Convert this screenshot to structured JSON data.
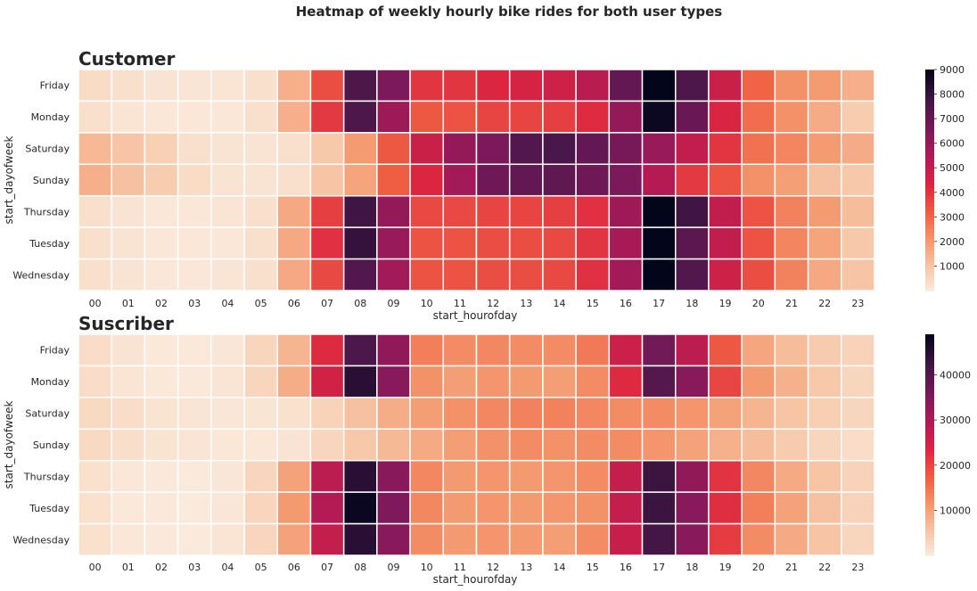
{
  "figure": {
    "title": "Heatmap of weekly hourly bike rides for both user types"
  },
  "chart_data": [
    {
      "type": "heatmap",
      "title": "Customer",
      "xlabel": "start_hourofday",
      "ylabel": "start_dayofweek",
      "x": [
        "00",
        "01",
        "02",
        "03",
        "04",
        "05",
        "06",
        "07",
        "08",
        "09",
        "10",
        "11",
        "12",
        "13",
        "14",
        "15",
        "16",
        "17",
        "18",
        "19",
        "20",
        "21",
        "22",
        "23"
      ],
      "y": [
        "Friday",
        "Monday",
        "Saturday",
        "Sunday",
        "Thursday",
        "Tuesday",
        "Wednesday"
      ],
      "values": [
        [
          400,
          300,
          200,
          150,
          150,
          300,
          1500,
          3500,
          7500,
          6500,
          4000,
          4000,
          4300,
          4500,
          4700,
          5200,
          7000,
          9300,
          7500,
          4800,
          3100,
          2200,
          2000,
          1500
        ],
        [
          300,
          150,
          100,
          100,
          100,
          300,
          1500,
          3900,
          7500,
          5800,
          3300,
          3400,
          3700,
          3700,
          3800,
          4200,
          6000,
          8800,
          6900,
          4400,
          2900,
          2200,
          1600,
          800
        ],
        [
          1300,
          1000,
          700,
          300,
          200,
          200,
          300,
          900,
          2000,
          3300,
          4800,
          6000,
          6500,
          7400,
          7600,
          7000,
          6600,
          5900,
          5000,
          4000,
          2800,
          2400,
          2000,
          1600
        ],
        [
          1500,
          1100,
          800,
          400,
          200,
          200,
          300,
          1000,
          1800,
          3200,
          4300,
          5700,
          6800,
          7000,
          7100,
          6800,
          6500,
          5300,
          3900,
          3400,
          2200,
          1900,
          1100,
          900
        ],
        [
          300,
          200,
          100,
          100,
          150,
          300,
          1700,
          3800,
          7800,
          6000,
          3600,
          3600,
          3700,
          3700,
          3800,
          4100,
          5800,
          9600,
          7800,
          5000,
          3400,
          2500,
          2000,
          1200
        ],
        [
          300,
          200,
          100,
          100,
          100,
          300,
          1700,
          4100,
          8000,
          5900,
          3400,
          3400,
          3500,
          3500,
          3600,
          4000,
          5600,
          9800,
          7200,
          5000,
          3400,
          2400,
          1800,
          900
        ],
        [
          300,
          200,
          100,
          100,
          150,
          300,
          1700,
          3600,
          7400,
          5700,
          3400,
          3400,
          3500,
          3500,
          3600,
          4100,
          5700,
          9000,
          7400,
          4700,
          3500,
          2500,
          1700,
          1000
        ]
      ],
      "colorbar": {
        "min": 0,
        "max": 9000,
        "ticks": [
          1000,
          2000,
          3000,
          4000,
          5000,
          6000,
          7000,
          8000,
          9000
        ]
      }
    },
    {
      "type": "heatmap",
      "title": "Suscriber",
      "xlabel": "start_hourofday",
      "ylabel": "start_dayofweek",
      "x": [
        "00",
        "01",
        "02",
        "03",
        "04",
        "05",
        "06",
        "07",
        "08",
        "09",
        "10",
        "11",
        "12",
        "13",
        "14",
        "15",
        "16",
        "17",
        "18",
        "19",
        "20",
        "21",
        "22",
        "23"
      ],
      "y": [
        "Friday",
        "Monday",
        "Saturday",
        "Sunday",
        "Thursday",
        "Tuesday",
        "Wednesday"
      ],
      "values": [
        [
          2000,
          1000,
          500,
          400,
          700,
          3000,
          7500,
          23000,
          41000,
          33000,
          14000,
          12500,
          13000,
          12500,
          12500,
          14500,
          26000,
          36500,
          28000,
          18000,
          9500,
          6500,
          4500,
          3500
        ],
        [
          2000,
          800,
          500,
          300,
          800,
          3000,
          8500,
          25000,
          45000,
          34000,
          12000,
          10500,
          11500,
          11000,
          10500,
          12500,
          23000,
          40000,
          34000,
          20000,
          11000,
          8000,
          5000,
          3000
        ],
        [
          2500,
          2000,
          1200,
          800,
          700,
          900,
          1500,
          3500,
          6000,
          8500,
          10500,
          12000,
          13000,
          13500,
          13500,
          13000,
          12500,
          12500,
          11500,
          10000,
          7500,
          5500,
          4000,
          3000
        ],
        [
          2500,
          1800,
          1200,
          800,
          600,
          600,
          1000,
          3000,
          5000,
          7000,
          9000,
          10500,
          12000,
          12500,
          12000,
          12500,
          12500,
          11500,
          10000,
          8000,
          6500,
          4500,
          3000,
          2000
        ],
        [
          1500,
          600,
          300,
          200,
          700,
          3000,
          10000,
          28000,
          45000,
          34000,
          13000,
          11000,
          11500,
          11000,
          11500,
          12500,
          27000,
          43000,
          33000,
          22000,
          13000,
          9000,
          5500,
          3500
        ],
        [
          1500,
          500,
          300,
          200,
          700,
          3200,
          11000,
          29000,
          48000,
          35000,
          13000,
          11000,
          11500,
          11000,
          11500,
          12000,
          27000,
          43000,
          34000,
          22500,
          14000,
          10000,
          6000,
          3500
        ],
        [
          1500,
          600,
          300,
          200,
          800,
          3200,
          10000,
          27000,
          45000,
          34000,
          12500,
          11000,
          11500,
          11000,
          10500,
          12500,
          26500,
          42000,
          34000,
          21000,
          12500,
          9000,
          5500,
          3000
        ]
      ],
      "colorbar": {
        "min": 0,
        "max": 49000,
        "ticks": [
          10000,
          20000,
          30000,
          40000
        ]
      }
    }
  ]
}
